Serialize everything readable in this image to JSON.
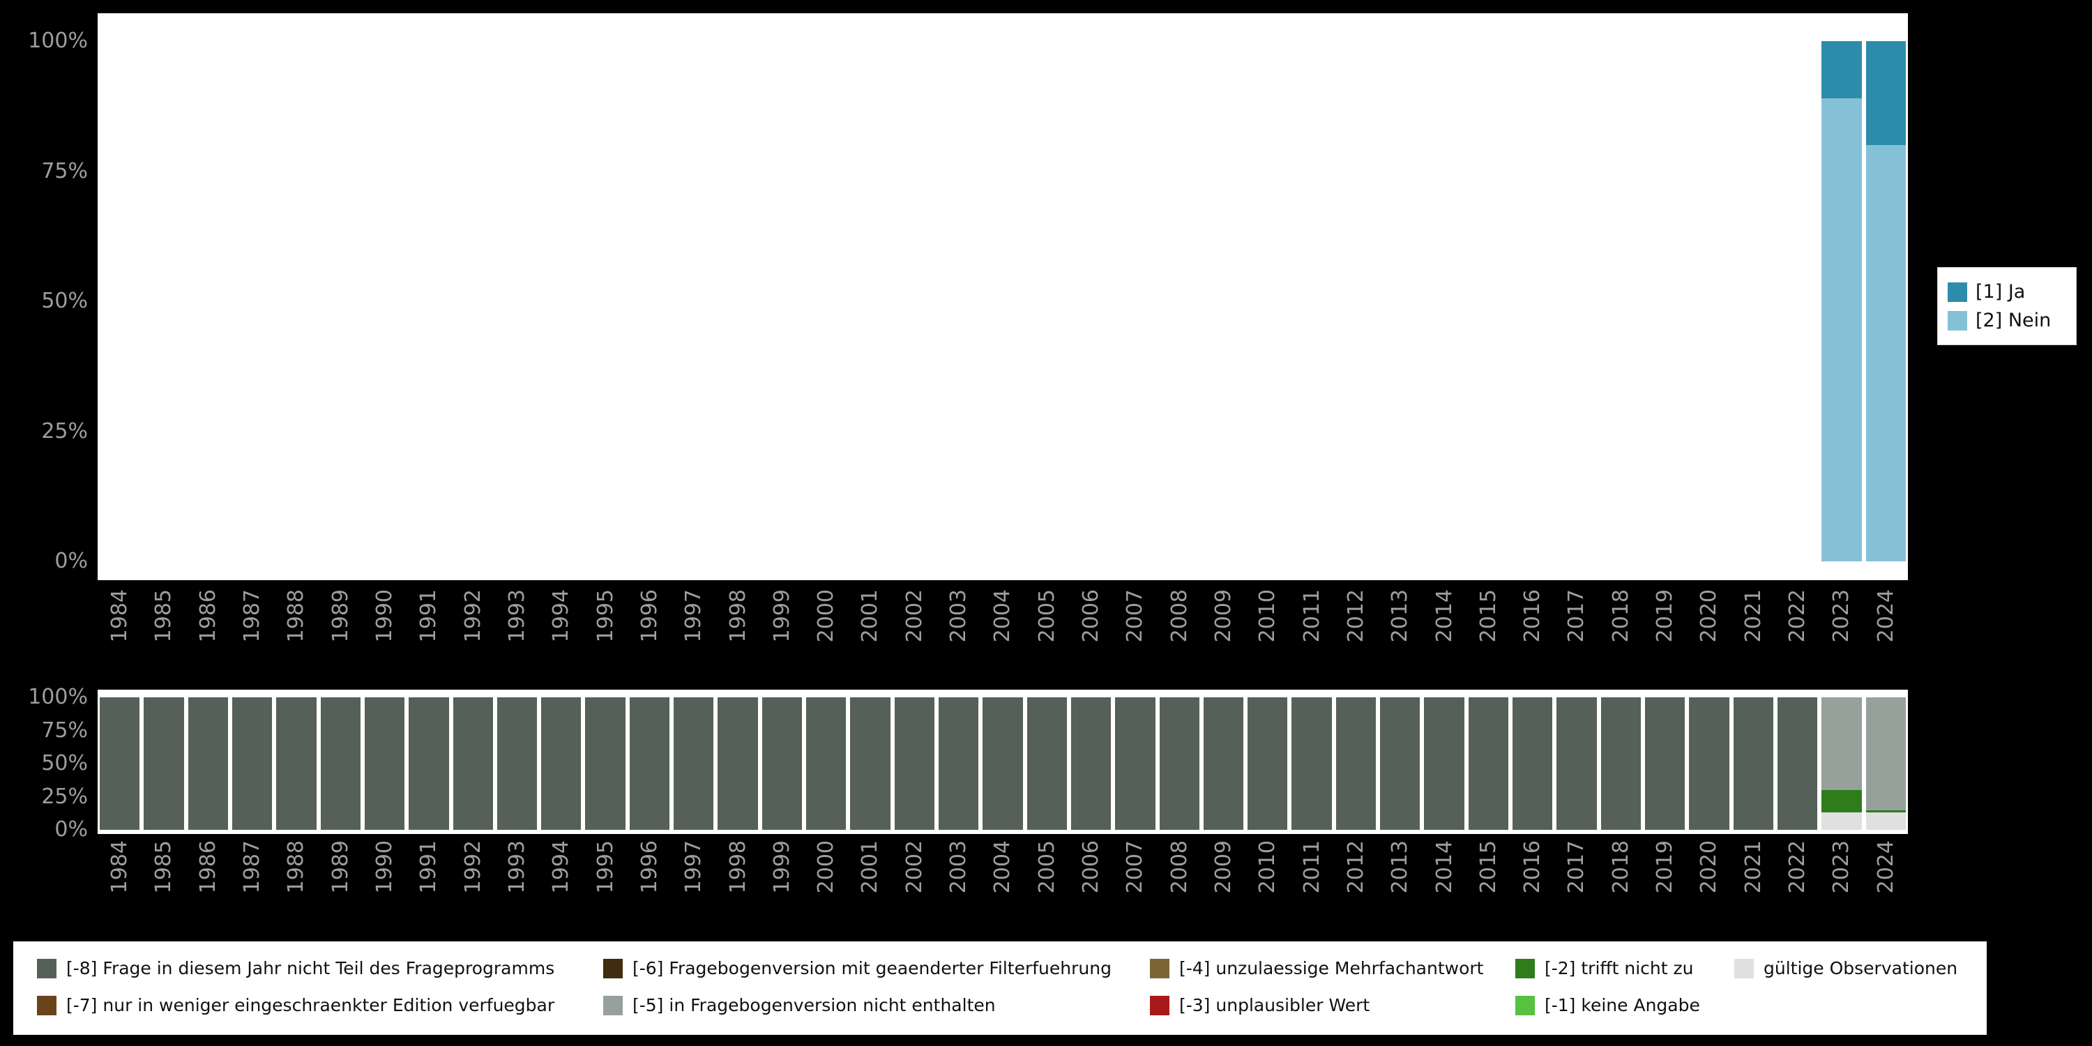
{
  "colors": {
    "background": "#000000",
    "plot_bg": "#ffffff",
    "axis_text": "#9e9e9e",
    "legend_text": "#111111",
    "ja": "#2e8cab",
    "nein": "#85c1d6",
    "neg8": "#556059",
    "neg7": "#6b431b",
    "neg6": "#402c0e",
    "neg5": "#97a19b",
    "neg4": "#7d6434",
    "neg3": "#a81a1a",
    "neg2": "#2e7d1a",
    "neg1": "#57c140",
    "valid": "#e0e0e0"
  },
  "top_legend": {
    "items": [
      {
        "label": "[1] Ja",
        "color_key": "ja"
      },
      {
        "label": "[2] Nein",
        "color_key": "nein"
      }
    ]
  },
  "bottom_legend": {
    "columns": [
      {
        "items": [
          {
            "label": "[-8] Frage in diesem Jahr nicht Teil des Frageprogramms",
            "color_key": "neg8"
          },
          {
            "label": "[-7] nur in weniger eingeschraenkter Edition verfuegbar",
            "color_key": "neg7"
          }
        ]
      },
      {
        "items": [
          {
            "label": "[-6] Fragebogenversion mit geaenderter Filterfuehrung",
            "color_key": "neg6"
          },
          {
            "label": "[-5] in Fragebogenversion nicht enthalten",
            "color_key": "neg5"
          }
        ]
      },
      {
        "items": [
          {
            "label": "[-4] unzulaessige Mehrfachantwort",
            "color_key": "neg4"
          },
          {
            "label": "[-3] unplausibler Wert",
            "color_key": "neg3"
          }
        ]
      },
      {
        "items": [
          {
            "label": "[-2] trifft nicht zu",
            "color_key": "neg2"
          },
          {
            "label": "[-1] keine Angabe",
            "color_key": "neg1"
          }
        ]
      },
      {
        "items": [
          {
            "label": "gültige Observationen",
            "color_key": "valid"
          }
        ]
      }
    ]
  },
  "chart_data": [
    {
      "type": "bar",
      "stacked": true,
      "title": "",
      "xlabel": "",
      "ylabel": "",
      "ylim": [
        0,
        100
      ],
      "unit": "percent",
      "legend_position": "right",
      "grid": false,
      "yticks_top_to_bottom": [
        "100%",
        "75%",
        "50%",
        "25%",
        "0%"
      ],
      "categories": [
        "1984",
        "1985",
        "1986",
        "1987",
        "1988",
        "1989",
        "1990",
        "1991",
        "1992",
        "1993",
        "1994",
        "1995",
        "1996",
        "1997",
        "1998",
        "1999",
        "2000",
        "2001",
        "2002",
        "2003",
        "2004",
        "2005",
        "2006",
        "2007",
        "2008",
        "2009",
        "2010",
        "2011",
        "2012",
        "2013",
        "2014",
        "2015",
        "2016",
        "2017",
        "2018",
        "2019",
        "2020",
        "2021",
        "2022",
        "2023",
        "2024"
      ],
      "series": [
        {
          "name": "[1] Ja",
          "color": "#2e8cab",
          "values": [
            0,
            0,
            0,
            0,
            0,
            0,
            0,
            0,
            0,
            0,
            0,
            0,
            0,
            0,
            0,
            0,
            0,
            0,
            0,
            0,
            0,
            0,
            0,
            0,
            0,
            0,
            0,
            0,
            0,
            0,
            0,
            0,
            0,
            0,
            0,
            0,
            0,
            0,
            0,
            11,
            20
          ]
        },
        {
          "name": "[2] Nein",
          "color": "#85c1d6",
          "values": [
            0,
            0,
            0,
            0,
            0,
            0,
            0,
            0,
            0,
            0,
            0,
            0,
            0,
            0,
            0,
            0,
            0,
            0,
            0,
            0,
            0,
            0,
            0,
            0,
            0,
            0,
            0,
            0,
            0,
            0,
            0,
            0,
            0,
            0,
            0,
            0,
            0,
            0,
            0,
            89,
            80
          ]
        }
      ]
    },
    {
      "type": "bar",
      "stacked": true,
      "title": "",
      "xlabel": "",
      "ylabel": "",
      "ylim": [
        0,
        100
      ],
      "unit": "percent",
      "legend_position": "bottom",
      "grid": false,
      "yticks_top_to_bottom": [
        "100%",
        "75%",
        "50%",
        "25%",
        "0%"
      ],
      "categories": [
        "1984",
        "1985",
        "1986",
        "1987",
        "1988",
        "1989",
        "1990",
        "1991",
        "1992",
        "1993",
        "1994",
        "1995",
        "1996",
        "1997",
        "1998",
        "1999",
        "2000",
        "2001",
        "2002",
        "2003",
        "2004",
        "2005",
        "2006",
        "2007",
        "2008",
        "2009",
        "2010",
        "2011",
        "2012",
        "2013",
        "2014",
        "2015",
        "2016",
        "2017",
        "2018",
        "2019",
        "2020",
        "2021",
        "2022",
        "2023",
        "2024"
      ],
      "series": [
        {
          "name": "[-8] Frage in diesem Jahr nicht Teil des Frageprogramms",
          "color": "#556059",
          "values": [
            100,
            100,
            100,
            100,
            100,
            100,
            100,
            100,
            100,
            100,
            100,
            100,
            100,
            100,
            100,
            100,
            100,
            100,
            100,
            100,
            100,
            100,
            100,
            100,
            100,
            100,
            100,
            100,
            100,
            100,
            100,
            100,
            100,
            100,
            100,
            100,
            100,
            100,
            100,
            0,
            0
          ]
        },
        {
          "name": "[-5] in Fragebogenversion nicht enthalten",
          "color": "#97a19b",
          "values": [
            0,
            0,
            0,
            0,
            0,
            0,
            0,
            0,
            0,
            0,
            0,
            0,
            0,
            0,
            0,
            0,
            0,
            0,
            0,
            0,
            0,
            0,
            0,
            0,
            0,
            0,
            0,
            0,
            0,
            0,
            0,
            0,
            0,
            0,
            0,
            0,
            0,
            0,
            0,
            70,
            85
          ]
        },
        {
          "name": "[-2] trifft nicht zu",
          "color": "#2e7d1a",
          "values": [
            0,
            0,
            0,
            0,
            0,
            0,
            0,
            0,
            0,
            0,
            0,
            0,
            0,
            0,
            0,
            0,
            0,
            0,
            0,
            0,
            0,
            0,
            0,
            0,
            0,
            0,
            0,
            0,
            0,
            0,
            0,
            0,
            0,
            0,
            0,
            0,
            0,
            0,
            0,
            17,
            2
          ]
        },
        {
          "name": "gültige Observationen",
          "color": "#e0e0e0",
          "values": [
            0,
            0,
            0,
            0,
            0,
            0,
            0,
            0,
            0,
            0,
            0,
            0,
            0,
            0,
            0,
            0,
            0,
            0,
            0,
            0,
            0,
            0,
            0,
            0,
            0,
            0,
            0,
            0,
            0,
            0,
            0,
            0,
            0,
            0,
            0,
            0,
            0,
            0,
            0,
            13,
            13
          ]
        }
      ]
    }
  ]
}
